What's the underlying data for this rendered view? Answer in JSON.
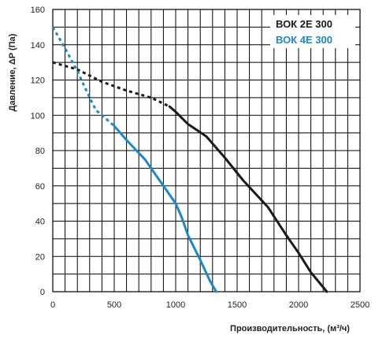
{
  "chart_data": {
    "type": "line",
    "title": "",
    "xlabel": "Производительность, (м³/ч)",
    "ylabel": "Давление, ΔP (Па)",
    "xlim": [
      0,
      2500
    ],
    "ylim": [
      0,
      160
    ],
    "x_ticks": [
      0,
      500,
      1000,
      1500,
      2000,
      2500
    ],
    "y_ticks": [
      0,
      20,
      40,
      60,
      80,
      100,
      120,
      140,
      160
    ],
    "grid": true,
    "legend_position": "top-right",
    "series": [
      {
        "name": "ВОК 2Е 300",
        "color": "#1a1a1a",
        "dashed_segment": [
          [
            0,
            130
          ],
          [
            200,
            126
          ],
          [
            400,
            119
          ],
          [
            600,
            114
          ],
          [
            800,
            110
          ],
          [
            950,
            105
          ]
        ],
        "values": [
          [
            950,
            105
          ],
          [
            1000,
            102
          ],
          [
            1100,
            95
          ],
          [
            1250,
            88
          ],
          [
            1400,
            76
          ],
          [
            1550,
            63
          ],
          [
            1750,
            48
          ],
          [
            1900,
            32
          ],
          [
            2000,
            22
          ],
          [
            2100,
            11
          ],
          [
            2230,
            0
          ]
        ]
      },
      {
        "name": "ВОК 4Е 300",
        "color": "#1a88c9",
        "dashed_segment": [
          [
            0,
            150
          ],
          [
            100,
            138
          ],
          [
            200,
            125
          ],
          [
            280,
            113
          ],
          [
            350,
            103
          ],
          [
            500,
            94
          ]
        ],
        "values": [
          [
            500,
            94
          ],
          [
            600,
            86
          ],
          [
            750,
            75
          ],
          [
            850,
            65
          ],
          [
            950,
            55
          ],
          [
            1000,
            50
          ],
          [
            1050,
            42
          ],
          [
            1100,
            32
          ],
          [
            1200,
            18
          ],
          [
            1280,
            6
          ],
          [
            1330,
            0
          ]
        ]
      }
    ]
  }
}
